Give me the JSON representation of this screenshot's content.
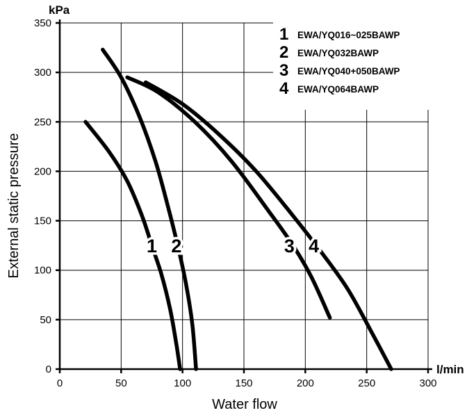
{
  "chart_data": {
    "type": "line",
    "xlabel": "Water flow",
    "ylabel": "External static pressure",
    "x_unit": "l/min",
    "y_unit": "kPa",
    "xlim": [
      0,
      300
    ],
    "ylim": [
      0,
      350
    ],
    "x_ticks": [
      "0",
      "50",
      "100",
      "150",
      "200",
      "250",
      "300"
    ],
    "y_ticks": [
      "0",
      "50",
      "100",
      "150",
      "200",
      "250",
      "300",
      "350"
    ],
    "grid": true,
    "legend_position": "top-right",
    "series": [
      {
        "name": "EWA/YQ016~025BAWP",
        "label": "1",
        "x": [
          21,
          40,
          55,
          67,
          75,
          83,
          90,
          95,
          98
        ],
        "y": [
          250,
          220,
          190,
          155,
          125,
          95,
          60,
          25,
          0
        ]
      },
      {
        "name": "EWA/YQ032BAWP",
        "label": "2",
        "x": [
          35,
          50,
          65,
          78,
          88,
          97,
          103,
          108,
          111
        ],
        "y": [
          323,
          295,
          255,
          210,
          165,
          120,
          85,
          45,
          0
        ]
      },
      {
        "name": "EWA/YQ040+050BAWP",
        "label": "3",
        "x": [
          55,
          80,
          110,
          140,
          170,
          190,
          205,
          220
        ],
        "y": [
          295,
          280,
          250,
          210,
          160,
          125,
          93,
          52
        ]
      },
      {
        "name": "EWA/YQ064BAWP",
        "label": "4",
        "x": [
          70,
          100,
          130,
          160,
          190,
          215,
          235,
          255,
          270
        ],
        "y": [
          290,
          268,
          237,
          200,
          155,
          115,
          80,
          35,
          0
        ]
      }
    ],
    "curve_label_points": [
      {
        "label": "1",
        "x": 75,
        "y": 125
      },
      {
        "label": "2",
        "x": 95,
        "y": 125
      },
      {
        "label": "3",
        "x": 187,
        "y": 125
      },
      {
        "label": "4",
        "x": 207,
        "y": 125
      }
    ]
  }
}
